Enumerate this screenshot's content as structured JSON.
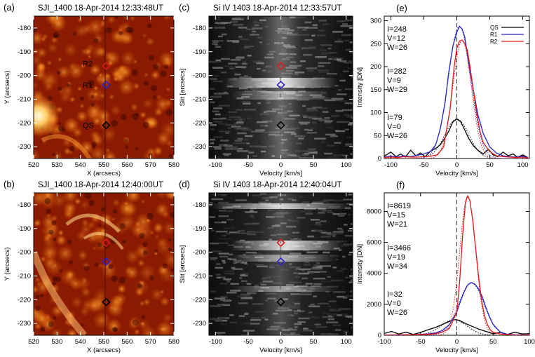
{
  "colors": {
    "qs": "#000000",
    "r1": "#2a22c8",
    "r2": "#e01a1a"
  },
  "panels": {
    "a": {
      "letter": "(a)",
      "title": "SJI_1400 18-Apr-2014 12:33:48UT",
      "xlabel": "X (arcsecs)",
      "ylabel": "Y (arcsecs)",
      "xticks": [
        "520",
        "530",
        "540",
        "550",
        "560",
        "570",
        "580"
      ],
      "yticks": [
        "-180",
        "-190",
        "-200",
        "-210",
        "-220",
        "-230"
      ],
      "labels": {
        "r2": "R2",
        "r1": "R1",
        "qs": "QS"
      }
    },
    "b": {
      "letter": "(b)",
      "title": "SJI_1400 18-Apr-2014 12:40:00UT",
      "xlabel": "X (arcsecs)",
      "ylabel": "Y (arcsecs)",
      "xticks": [
        "520",
        "530",
        "540",
        "550",
        "560",
        "570",
        "580"
      ],
      "yticks": [
        "-180",
        "-190",
        "-200",
        "-210",
        "-220",
        "-230"
      ]
    },
    "c": {
      "letter": "(c)",
      "title": "Si IV 1403 18-Apr-2014 12:33:57UT",
      "xlabel": "Velocity [km/s]",
      "ylabel": "Slit [arcsecs]",
      "xticks": [
        "-100",
        "-50",
        "0",
        "50",
        "100"
      ],
      "yticks": [
        "-180",
        "-190",
        "-200",
        "-210",
        "-220",
        "-230"
      ]
    },
    "d": {
      "letter": "(d)",
      "title": "Si IV 1403 18-Apr-2014 12:40:04UT",
      "xlabel": "Velocity [km/s]",
      "ylabel": "Slit [arcsecs]",
      "xticks": [
        "-100",
        "-50",
        "0",
        "50",
        "100"
      ],
      "yticks": [
        "-180",
        "-190",
        "-200",
        "-210",
        "-220",
        "-230"
      ]
    },
    "e": {
      "letter": "(e)",
      "xlabel": "Velocity [km/s]",
      "ylabel": "Intensity [DN]",
      "xticks": [
        "-100",
        "-50",
        "0",
        "50",
        "100"
      ],
      "yticks": [
        "0",
        "50",
        "100",
        "150",
        "200",
        "250",
        "300"
      ],
      "legend": [
        "QS",
        "R1",
        "R2"
      ],
      "annot": {
        "r2": [
          "I=248",
          "V=12",
          "W=26"
        ],
        "r1": [
          "I=282",
          "V=9",
          "W=29"
        ],
        "qs": [
          "I=79",
          "V=0",
          "W=26"
        ]
      }
    },
    "f": {
      "letter": "(f)",
      "xlabel": "Velocity [km/s]",
      "ylabel": "Intensity [DN]",
      "xticks": [
        "-100",
        "-50",
        "0",
        "50",
        "100"
      ],
      "yticks": [
        "0",
        "2000",
        "4000",
        "6000",
        "8000"
      ],
      "annot": {
        "r2": [
          "I=8619",
          "V=15",
          "W=21"
        ],
        "r1": [
          "I=3466",
          "V=19",
          "W=34"
        ],
        "qs": [
          "I=32",
          "V=0",
          "W=26"
        ]
      }
    }
  },
  "chart_data": [
    {
      "type": "heatmap",
      "panel": "a",
      "xlim": [
        520,
        580
      ],
      "ylim": [
        -235,
        -175
      ],
      "markers": [
        {
          "name": "R2",
          "x": 551,
          "y": -196
        },
        {
          "name": "R1",
          "x": 551,
          "y": -204
        },
        {
          "name": "QS",
          "x": 551,
          "y": -221
        }
      ]
    },
    {
      "type": "heatmap",
      "panel": "b",
      "xlim": [
        520,
        580
      ],
      "ylim": [
        -235,
        -175
      ],
      "markers": [
        {
          "name": "R2",
          "x": 551,
          "y": -196
        },
        {
          "name": "R1",
          "x": 551,
          "y": -204
        },
        {
          "name": "QS",
          "x": 551,
          "y": -221
        }
      ]
    },
    {
      "type": "heatmap",
      "panel": "c",
      "xlim": [
        -110,
        110
      ],
      "ylim": [
        -235,
        -175
      ],
      "markers": [
        {
          "name": "R2",
          "x": 0,
          "y": -196
        },
        {
          "name": "R1",
          "x": 0,
          "y": -204
        },
        {
          "name": "QS",
          "x": 0,
          "y": -221
        }
      ]
    },
    {
      "type": "heatmap",
      "panel": "d",
      "xlim": [
        -110,
        110
      ],
      "ylim": [
        -235,
        -175
      ],
      "markers": [
        {
          "name": "R2",
          "x": 0,
          "y": -196
        },
        {
          "name": "R1",
          "x": 0,
          "y": -204
        },
        {
          "name": "QS",
          "x": 0,
          "y": -221
        }
      ]
    },
    {
      "type": "line",
      "panel": "e",
      "xlim": [
        -110,
        110
      ],
      "ylim": [
        0,
        310
      ],
      "series": [
        {
          "name": "QS",
          "x": [
            -110,
            -100,
            -92,
            -85,
            -78,
            -70,
            -62,
            -55,
            -48,
            -40,
            -32,
            -25,
            -18,
            -12,
            -6,
            0,
            6,
            12,
            18,
            25,
            32,
            40,
            48,
            55,
            62,
            70,
            78,
            85,
            92,
            100,
            108
          ],
          "y": [
            5,
            14,
            4,
            10,
            3,
            18,
            6,
            12,
            4,
            16,
            22,
            30,
            45,
            60,
            80,
            86,
            80,
            62,
            44,
            28,
            18,
            10,
            20,
            8,
            4,
            14,
            6,
            10,
            3,
            8,
            2
          ]
        },
        {
          "name": "R1",
          "x": [
            -110,
            -100,
            -90,
            -80,
            -70,
            -60,
            -50,
            -40,
            -32,
            -25,
            -18,
            -12,
            -6,
            0,
            4,
            8,
            12,
            18,
            25,
            32,
            40,
            50,
            60,
            70,
            80,
            90,
            100,
            108
          ],
          "y": [
            3,
            5,
            3,
            6,
            4,
            7,
            10,
            15,
            30,
            65,
            120,
            190,
            245,
            275,
            288,
            282,
            265,
            210,
            150,
            95,
            55,
            25,
            12,
            6,
            4,
            3,
            5,
            2
          ]
        },
        {
          "name": "R2",
          "x": [
            -110,
            -100,
            -90,
            -80,
            -70,
            -60,
            -50,
            -40,
            -30,
            -20,
            -10,
            -4,
            0,
            4,
            8,
            12,
            16,
            20,
            25,
            30,
            35,
            40,
            50,
            60,
            70,
            80,
            90,
            100,
            108
          ],
          "y": [
            2,
            3,
            2,
            4,
            3,
            3,
            4,
            5,
            8,
            25,
            110,
            200,
            240,
            256,
            258,
            250,
            235,
            200,
            150,
            100,
            60,
            35,
            15,
            6,
            4,
            3,
            2,
            3,
            1
          ]
        }
      ]
    },
    {
      "type": "line",
      "panel": "f",
      "xlim": [
        -100,
        100
      ],
      "ylim": [
        0,
        9200
      ],
      "series": [
        {
          "name": "QS",
          "x": [
            -100,
            -90,
            -80,
            -70,
            -60,
            -50,
            -40,
            -30,
            -20,
            -10,
            -4,
            0,
            4,
            10,
            20,
            30,
            40,
            50,
            60,
            70,
            80,
            90,
            100
          ],
          "y": [
            120,
            250,
            80,
            200,
            60,
            180,
            350,
            500,
            700,
            900,
            1000,
            1000,
            950,
            800,
            600,
            400,
            250,
            100,
            180,
            60,
            200,
            80,
            100
          ]
        },
        {
          "name": "R1",
          "x": [
            -100,
            -80,
            -60,
            -40,
            -30,
            -20,
            -10,
            0,
            5,
            10,
            15,
            20,
            25,
            30,
            35,
            40,
            45,
            50,
            60,
            70,
            80,
            100
          ],
          "y": [
            20,
            30,
            40,
            80,
            150,
            300,
            700,
            1500,
            2200,
            2800,
            3250,
            3400,
            3300,
            3000,
            2500,
            1800,
            1200,
            700,
            200,
            60,
            30,
            20
          ]
        },
        {
          "name": "R2",
          "x": [
            -100,
            -80,
            -60,
            -40,
            -30,
            -20,
            -10,
            0,
            4,
            8,
            12,
            15,
            18,
            22,
            26,
            30,
            34,
            38,
            42,
            46,
            50,
            60,
            70,
            80,
            100
          ],
          "y": [
            10,
            20,
            30,
            60,
            100,
            200,
            450,
            1500,
            3500,
            6500,
            8600,
            9000,
            8700,
            7400,
            5600,
            3800,
            2300,
            1300,
            700,
            350,
            200,
            80,
            40,
            20,
            10
          ]
        }
      ]
    }
  ]
}
